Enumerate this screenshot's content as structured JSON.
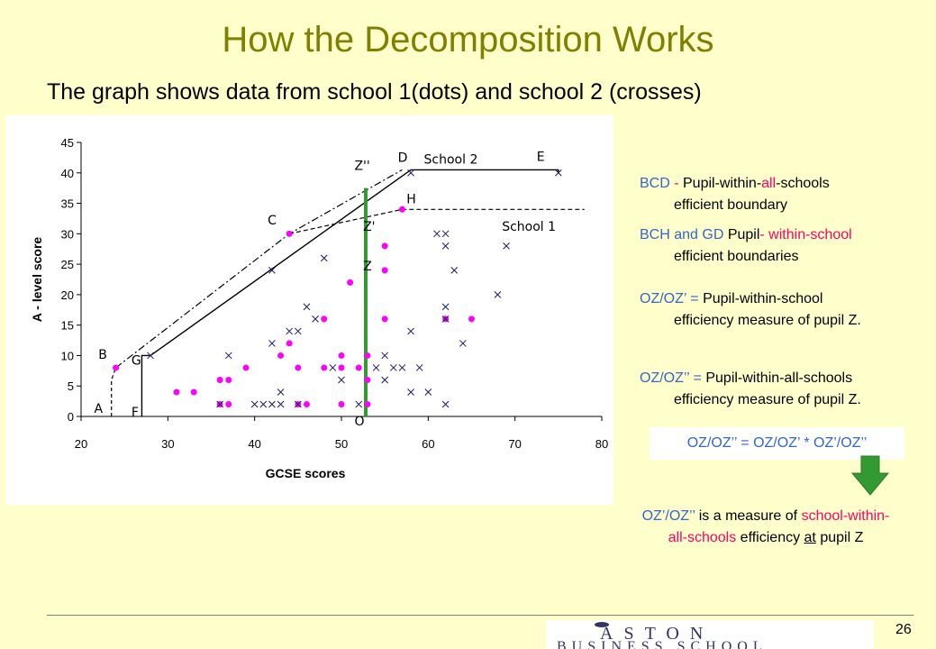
{
  "slide": {
    "title": "How the Decomposition Works",
    "subtitle": "The graph shows data from school 1(dots) and school 2 (crosses)",
    "page_number": "26"
  },
  "notes": {
    "n1": {
      "term": "BCD",
      "sep": " - ",
      "part1": "Pupil-within-",
      "part2": "all",
      "part3": "-schools",
      "line2": "efficient boundary"
    },
    "n2": {
      "term": "BCH and GD",
      "part1": " Pupil",
      "part2": "- within-school",
      "line2": "efficient boundaries"
    },
    "n3": {
      "term": "OZ/OZ’",
      "eq": " = ",
      "part1": "Pupil-within-school",
      "line2": "efficiency measure of pupil Z."
    },
    "n4": {
      "term": "OZ/OZ’’",
      "eq": " = ",
      "part1": "Pupil-within-all-schools",
      "line2": "efficiency measure of pupil Z."
    }
  },
  "formula": "OZ/OZ’’ = OZ/OZ’ * OZ’/OZ’’",
  "conclusion": {
    "term": "OZ’/OZ’’",
    "part1": "  is a measure of ",
    "part2": "school-within-",
    "part3": "all-schools",
    "part4": "  efficiency ",
    "part5": "at",
    "part6": "  pupil  Z"
  },
  "logo": {
    "top": "ASTON",
    "bottom": "BUSINESS SCHOOL"
  },
  "colors": {
    "background": "#ffffcc",
    "title": "#808000",
    "blue": "#3366cc",
    "pink": "#ff0066",
    "dot": "#ff00ff",
    "green_line": "#339933",
    "arrow": "#339933"
  },
  "chart_data": {
    "type": "scatter",
    "xlabel": "GCSE scores",
    "ylabel": "A - level score",
    "xlim": [
      20,
      80
    ],
    "ylim": [
      0,
      45
    ],
    "xticks": [
      20,
      30,
      40,
      50,
      60,
      70,
      80
    ],
    "yticks": [
      0,
      5,
      10,
      15,
      20,
      25,
      30,
      35,
      40,
      45
    ],
    "grid": false,
    "series": [
      {
        "marker": "dot",
        "points": [
          [
            24,
            8
          ],
          [
            31,
            4
          ],
          [
            33,
            4
          ],
          [
            36,
            6
          ],
          [
            36,
            2
          ],
          [
            37,
            2
          ],
          [
            37,
            6
          ],
          [
            39,
            8
          ],
          [
            43,
            10
          ],
          [
            44,
            30
          ],
          [
            44,
            12
          ],
          [
            45,
            2
          ],
          [
            45,
            8
          ],
          [
            46,
            2
          ],
          [
            48,
            16
          ],
          [
            48,
            8
          ],
          [
            50,
            10
          ],
          [
            50,
            8
          ],
          [
            50,
            2
          ],
          [
            51,
            22
          ],
          [
            52,
            8
          ],
          [
            53,
            10
          ],
          [
            53,
            6
          ],
          [
            53,
            2
          ],
          [
            55,
            24
          ],
          [
            55,
            28
          ],
          [
            55,
            16
          ],
          [
            57,
            34
          ],
          [
            62,
            16
          ],
          [
            65,
            16
          ]
        ]
      },
      {
        "marker": "cross",
        "points": [
          [
            28,
            10
          ],
          [
            36,
            2
          ],
          [
            37,
            10
          ],
          [
            40,
            2
          ],
          [
            41,
            2
          ],
          [
            42,
            24
          ],
          [
            42,
            12
          ],
          [
            42,
            2
          ],
          [
            43,
            4
          ],
          [
            43,
            2
          ],
          [
            44,
            14
          ],
          [
            45,
            14
          ],
          [
            45,
            2
          ],
          [
            46,
            18
          ],
          [
            47,
            16
          ],
          [
            48,
            26
          ],
          [
            49,
            8
          ],
          [
            50,
            6
          ],
          [
            52,
            2
          ],
          [
            54,
            8
          ],
          [
            55,
            6
          ],
          [
            55,
            10
          ],
          [
            56,
            8
          ],
          [
            57,
            8
          ],
          [
            58,
            4
          ],
          [
            58,
            14
          ],
          [
            58,
            40
          ],
          [
            59,
            8
          ],
          [
            60,
            4
          ],
          [
            61,
            30
          ],
          [
            62,
            30
          ],
          [
            62,
            28
          ],
          [
            62,
            16
          ],
          [
            62,
            2
          ],
          [
            62,
            18
          ],
          [
            63,
            24
          ],
          [
            64,
            12
          ],
          [
            68,
            20
          ],
          [
            69,
            28
          ],
          [
            75,
            40
          ]
        ]
      }
    ],
    "annotations": [
      {
        "text": "School 2",
        "x": 59.5,
        "y": 41.5
      },
      {
        "text": "School 1",
        "x": 68.5,
        "y": 30.5
      },
      {
        "text": "D",
        "x": 56.5,
        "y": 41.8
      },
      {
        "text": "E",
        "x": 72.5,
        "y": 42
      },
      {
        "text": "H",
        "x": 57.5,
        "y": 35
      },
      {
        "text": "C",
        "x": 41.5,
        "y": 31.5
      },
      {
        "text": "Z''",
        "x": 51.5,
        "y": 40.5
      },
      {
        "text": "Z'",
        "x": 52.5,
        "y": 30.5
      },
      {
        "text": "Z",
        "x": 52.5,
        "y": 24
      },
      {
        "text": "O",
        "x": 51.5,
        "y": -1.5
      },
      {
        "text": "B",
        "x": 22,
        "y": 9.5
      },
      {
        "text": "G",
        "x": 25.8,
        "y": 8.5
      },
      {
        "text": "A",
        "x": 21.5,
        "y": 0.6
      },
      {
        "text": "F",
        "x": 25.8,
        "y": 0
      }
    ]
  }
}
